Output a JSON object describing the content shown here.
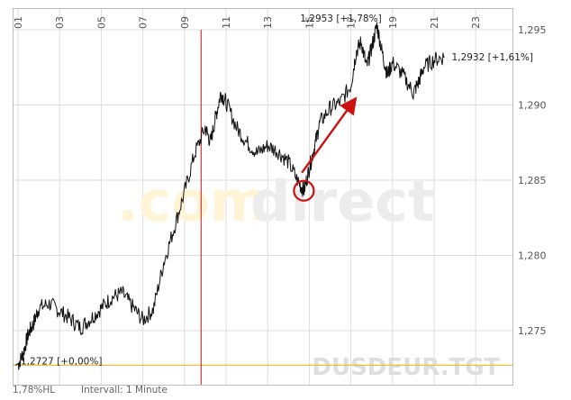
{
  "chart_data": {
    "type": "line",
    "title": "",
    "xlabel": "",
    "ylabel": "",
    "x_ticks": [
      "01",
      "03",
      "05",
      "07",
      "09",
      "11",
      "13",
      "15",
      "17",
      "19",
      "21",
      "23"
    ],
    "y_ticks": [
      "1,295",
      "1,290",
      "1,285",
      "1,280",
      "1,275"
    ],
    "ylim": [
      1.2725,
      1.296
    ],
    "xlim": [
      0,
      24
    ],
    "grid": true,
    "series": [
      {
        "x": [
          0,
          0.25,
          0.5,
          0.75,
          1,
          1.5,
          2,
          2.5,
          3,
          3.5,
          4,
          4.5,
          5,
          5.5,
          6,
          6.5,
          7,
          7.5,
          8,
          8.5,
          9,
          9.25,
          9.5,
          9.75,
          10,
          10.5,
          11,
          11.5,
          12,
          12.5,
          13,
          13.5,
          13.75,
          14,
          14.25,
          14.5,
          15,
          15.5,
          16,
          16.25,
          16.5,
          16.75,
          17,
          17.25,
          17.5,
          17.75,
          18,
          18.5,
          19,
          19.25,
          19.5,
          20,
          20.5
        ],
        "y": [
          1.2727,
          1.2735,
          1.2748,
          1.2755,
          1.2765,
          1.2768,
          1.2763,
          1.2758,
          1.2752,
          1.2758,
          1.2765,
          1.2772,
          1.2775,
          1.2766,
          1.2757,
          1.2764,
          1.2795,
          1.2818,
          1.2842,
          1.2868,
          1.2885,
          1.2875,
          1.2892,
          1.2908,
          1.2902,
          1.2885,
          1.2875,
          1.2868,
          1.2873,
          1.2869,
          1.2862,
          1.2848,
          1.2843,
          1.2858,
          1.2872,
          1.2888,
          1.2898,
          1.2902,
          1.2913,
          1.2935,
          1.2942,
          1.2925,
          1.2938,
          1.2953,
          1.2935,
          1.292,
          1.2928,
          1.292,
          1.2908,
          1.2915,
          1.2925,
          1.293,
          1.2932
        ]
      }
    ],
    "annotations": {
      "start_label": "1,2727 [+0,00%]",
      "high_label": "1,2953 [+1,78%]",
      "last_label": "1,2932 [+1,61%]",
      "baseline_value": 1.2727,
      "start_value": 1.2727,
      "high_value": 1.2953,
      "last_value": 1.2932,
      "vertical_marker_x": 9.8,
      "circle_marker": [
        14,
        1.2843
      ],
      "arrow_from": [
        14.25,
        1.2855
      ],
      "arrow_to": [
        16.8,
        1.2902
      ]
    },
    "colors": {
      "line": "#111111",
      "grid": "#dcdcdc",
      "baseline": "#e8c23a",
      "marker": "#cc1111",
      "watermark_orange": "#fff4d6",
      "watermark_gray": "#ececec",
      "symbol_watermark": "#dedede"
    }
  },
  "watermark": {
    "brand_left": ".com",
    "brand_right": "direct",
    "symbol": "DUSDEUR.TGT"
  },
  "footer": {
    "scale_mode": "1,78%HL",
    "interval": "Intervall: 1 Minute"
  }
}
